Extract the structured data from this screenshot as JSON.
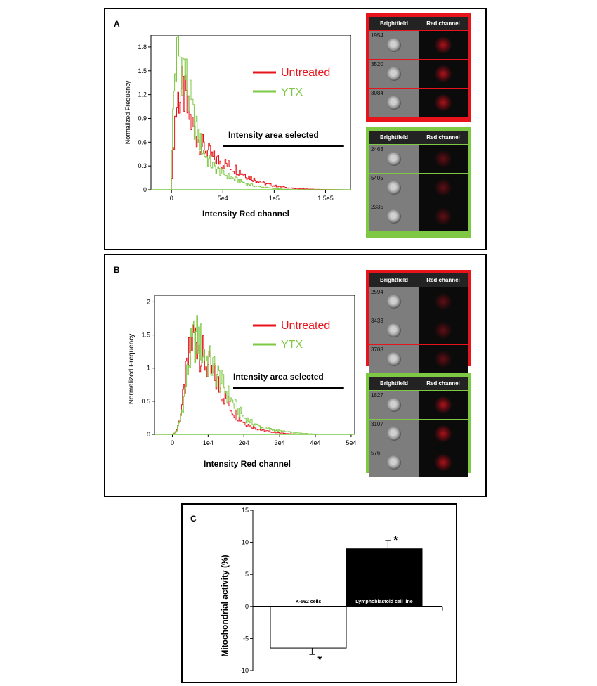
{
  "colors": {
    "untreated": "#e8141b",
    "ytx": "#7ec843"
  },
  "panels": [
    {
      "letter": "A",
      "legend": {
        "untreated": "Untreated",
        "ytx": "YTX"
      },
      "annotation": "Intensity area selected",
      "gallery_headers": {
        "brightfield": "Brightfield",
        "red_channel": "Red channel"
      },
      "untreated_ids": [
        "1954",
        "3520",
        "3084"
      ],
      "ytx_ids": [
        "2463",
        "5405",
        "2335"
      ]
    },
    {
      "letter": "B",
      "legend": {
        "untreated": "Untreated",
        "ytx": "YTX"
      },
      "annotation": "Intensity area selected",
      "gallery_headers": {
        "brightfield": "Brightfield",
        "red_channel": "Red channel"
      },
      "untreated_ids": [
        "2594",
        "3433",
        "3708"
      ],
      "ytx_ids": [
        "1827",
        "3107",
        "576"
      ]
    },
    {
      "letter": "C"
    }
  ],
  "chart_data": [
    {
      "panel": "A",
      "type": "line",
      "xlabel": "Intensity Red channel",
      "ylabel": "Normalized Frequency",
      "xlim": [
        -20000,
        175000
      ],
      "ylim": [
        0,
        1.95
      ],
      "xticks": [
        0,
        50000,
        100000,
        150000
      ],
      "xtick_labels": [
        "0",
        "5e4",
        "1e5",
        "1.5e5"
      ],
      "yticks": [
        0,
        0.3,
        0.6,
        0.9,
        1.2,
        1.5,
        1.8
      ],
      "ytick_labels": [
        "0",
        "0.3",
        "0.6",
        "0.9",
        "1.2",
        "1.5",
        "1.8"
      ],
      "selected_range": [
        50000,
        168000
      ],
      "series": [
        {
          "name": "Untreated",
          "color": "#e8141b",
          "x": [
            0,
            3000,
            6000,
            9000,
            12000,
            15000,
            20000,
            25000,
            30000,
            35000,
            40000,
            50000,
            60000,
            70000,
            80000,
            90000,
            100000,
            110000,
            120000,
            140000,
            170000
          ],
          "y": [
            0.2,
            0.9,
            1.15,
            1.25,
            1.2,
            1.0,
            0.8,
            0.65,
            0.55,
            0.48,
            0.4,
            0.34,
            0.28,
            0.2,
            0.13,
            0.08,
            0.05,
            0.03,
            0.015,
            0.005,
            0.0
          ]
        },
        {
          "name": "YTX",
          "color": "#7ec843",
          "x": [
            0,
            3000,
            6000,
            9000,
            12000,
            15000,
            20000,
            25000,
            30000,
            35000,
            40000,
            50000,
            60000,
            70000,
            80000,
            90000,
            100000,
            110000,
            120000,
            140000,
            170000
          ],
          "y": [
            0.6,
            1.5,
            1.7,
            1.65,
            1.55,
            1.3,
            0.95,
            0.7,
            0.5,
            0.38,
            0.3,
            0.2,
            0.14,
            0.09,
            0.05,
            0.03,
            0.015,
            0.005,
            0.0,
            0.0,
            0.0
          ]
        }
      ]
    },
    {
      "panel": "B",
      "type": "line",
      "xlabel": "Intensity Red channel",
      "ylabel": "Normalized Frequency",
      "xlim": [
        -5000,
        51000
      ],
      "ylim": [
        0,
        2.1
      ],
      "xticks": [
        0,
        10000,
        20000,
        30000,
        40000,
        50000
      ],
      "xtick_labels": [
        "0",
        "1e4",
        "2e4",
        "3e4",
        "4e4",
        "5e4"
      ],
      "yticks": [
        0,
        0.5,
        1,
        1.5,
        2
      ],
      "ytick_labels": [
        "0",
        "0.5",
        "1",
        "1.5",
        "2"
      ],
      "selected_range": [
        17000,
        48000
      ],
      "series": [
        {
          "name": "Untreated",
          "color": "#e8141b",
          "x": [
            0,
            1000,
            2000,
            3000,
            4000,
            5000,
            6000,
            7000,
            8000,
            9000,
            10000,
            12000,
            14000,
            16000,
            18000,
            20000,
            22000,
            25000,
            30000,
            35000,
            40000,
            48000
          ],
          "y": [
            0.0,
            0.05,
            0.25,
            0.6,
            1.0,
            1.35,
            1.5,
            1.4,
            1.25,
            1.1,
            1.0,
            0.82,
            0.62,
            0.42,
            0.28,
            0.18,
            0.12,
            0.06,
            0.02,
            0.0,
            0.0,
            0.0
          ]
        },
        {
          "name": "YTX",
          "color": "#7ec843",
          "x": [
            0,
            1000,
            2000,
            3000,
            4000,
            5000,
            6000,
            7000,
            8000,
            9000,
            10000,
            12000,
            14000,
            16000,
            18000,
            20000,
            22000,
            25000,
            30000,
            35000,
            40000,
            48000
          ],
          "y": [
            0.0,
            0.04,
            0.2,
            0.5,
            0.9,
            1.25,
            1.45,
            1.45,
            1.35,
            1.2,
            1.1,
            0.95,
            0.75,
            0.55,
            0.38,
            0.26,
            0.18,
            0.1,
            0.05,
            0.02,
            0.005,
            0.0
          ]
        }
      ]
    },
    {
      "panel": "C",
      "type": "bar",
      "ylabel": "Mitochondrial activity (%)",
      "ylim": [
        -10,
        15
      ],
      "yticks": [
        -10,
        -5,
        0,
        5,
        10,
        15
      ],
      "ytick_labels": [
        "-10",
        "-5",
        "0",
        "5",
        "10",
        "15"
      ],
      "categories": [
        "K-562 cells",
        "Lymphoblastoid cell line"
      ],
      "values": [
        -6.5,
        9.0
      ],
      "errors": [
        1.0,
        1.3
      ],
      "significance": [
        "*",
        "*"
      ],
      "bar_fills": [
        "#ffffff",
        "#000000"
      ]
    }
  ]
}
